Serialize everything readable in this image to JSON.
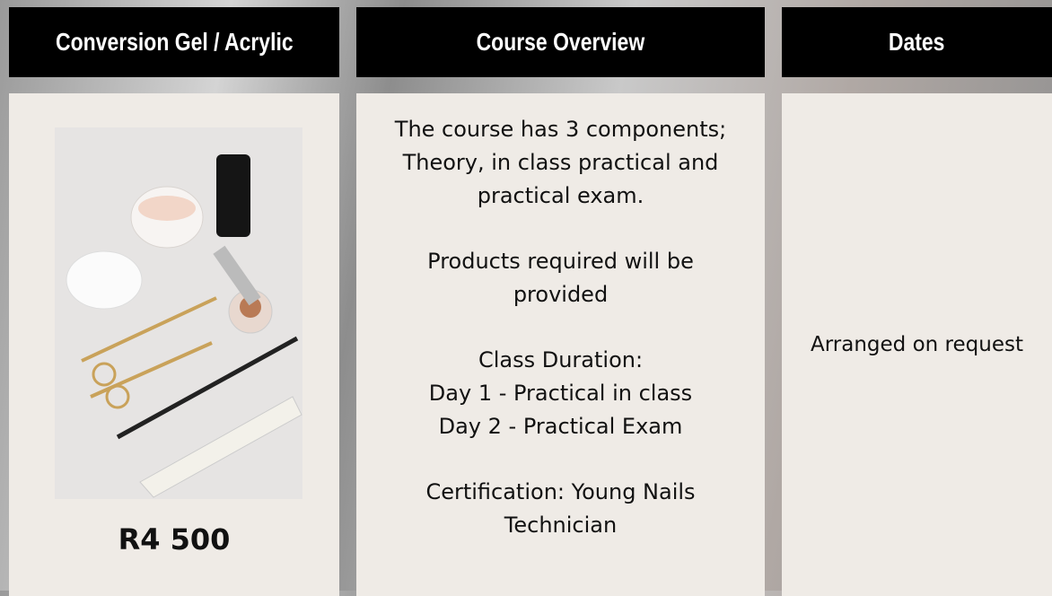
{
  "columns": [
    {
      "header": "Conversion Gel / Acrylic",
      "price": "R4 500"
    },
    {
      "header": "Course Overview",
      "paragraphs": [
        [
          "The course has 3 components;",
          "Theory, in class practical and",
          "practical exam."
        ],
        [
          "Products required will be",
          "provided"
        ],
        [
          "Class Duration:",
          "Day 1 - Practical in class",
          "Day 2 - Practical Exam"
        ],
        [
          "Certification: Young Nails",
          "Technician"
        ]
      ]
    },
    {
      "header": "Dates",
      "text": "Arranged on request"
    }
  ]
}
